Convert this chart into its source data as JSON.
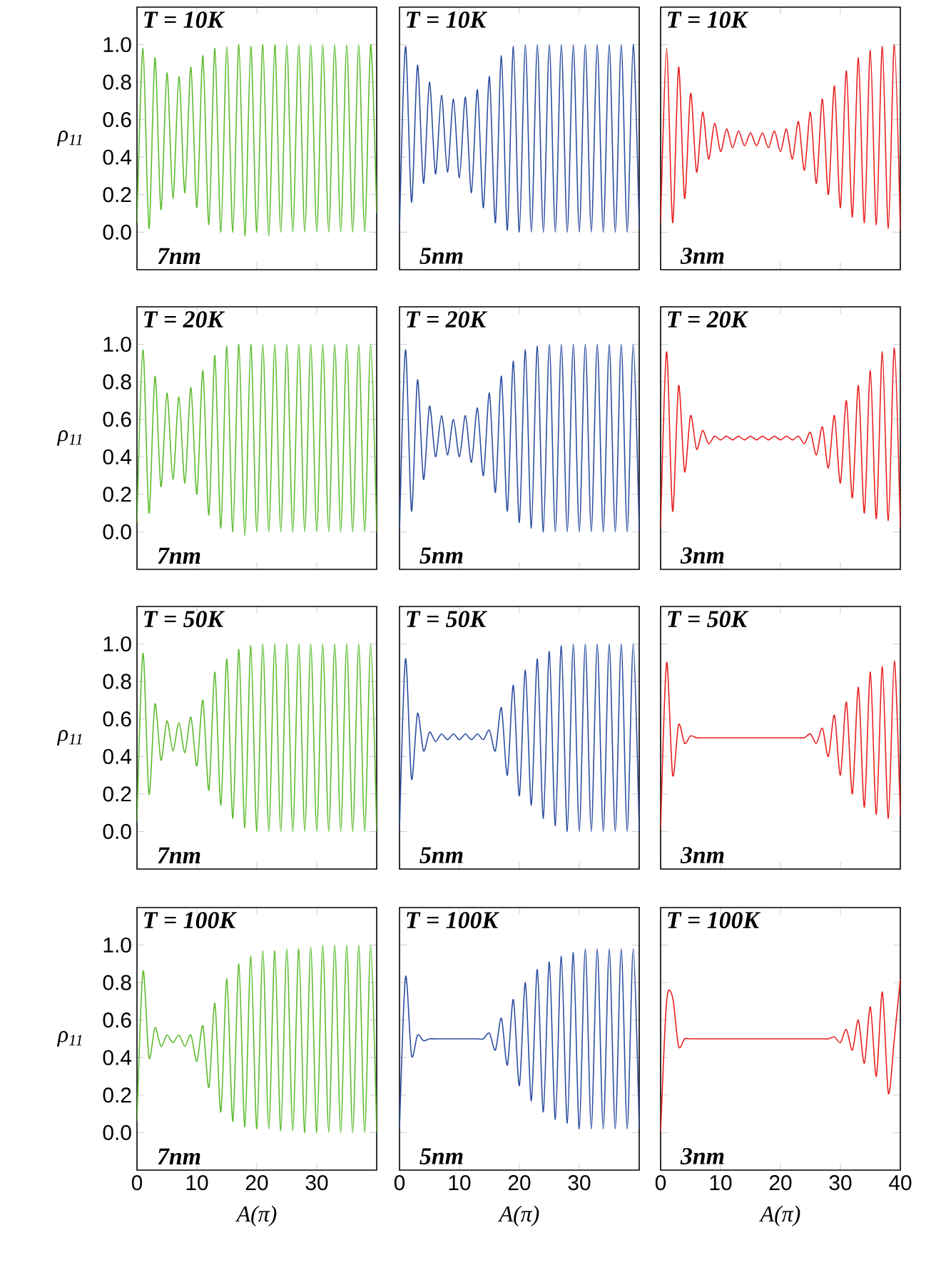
{
  "chart_data": [
    {
      "type": "line",
      "color": "#5dbb2f",
      "xlim": [
        0,
        40
      ],
      "ylim": [
        -0.2,
        1.2
      ],
      "xticks": [
        0,
        10,
        20,
        30
      ],
      "yticks": [
        {
          "value": 0,
          "label": "0.0"
        },
        {
          "value": 0.2,
          "label": "0.2"
        },
        {
          "value": 0.4,
          "label": "0.4"
        },
        {
          "value": 0.6,
          "label": "0.6"
        },
        {
          "value": 0.8,
          "label": "0.8"
        },
        {
          "value": 1.0,
          "label": "1.0"
        }
      ],
      "tick_labels": "y",
      "ylabel": "ρ$_{11}$",
      "annotations": [
        "T = 10K",
        "7nm"
      ],
      "x": [
        0,
        1,
        2,
        3,
        4,
        5,
        6,
        7,
        8,
        9,
        10,
        11,
        12,
        13,
        14,
        15,
        16,
        17,
        18,
        19,
        20,
        21,
        22,
        23,
        24,
        25,
        26,
        27,
        28,
        29,
        30,
        31,
        32,
        33,
        34,
        35,
        36,
        37,
        38,
        39,
        40
      ],
      "values": [
        0.05,
        0.98,
        0.02,
        0.93,
        0.12,
        0.85,
        0.18,
        0.83,
        0.21,
        0.88,
        0.13,
        0.94,
        0.04,
        0.98,
        0.0,
        0.99,
        0.0,
        1.0,
        -0.02,
        0.99,
        0.0,
        1.0,
        -0.02,
        1.0,
        0.0,
        1.0,
        0.0,
        1.0,
        0.0,
        1.0,
        0.0,
        1.0,
        0.0,
        1.0,
        0.0,
        1.0,
        0.0,
        1.0,
        0.0,
        1.0,
        0.1
      ]
    },
    {
      "type": "line",
      "color": "#2c4ea0",
      "xlim": [
        0,
        40
      ],
      "ylim": [
        -0.2,
        1.2
      ],
      "xticks": [
        0,
        10,
        20,
        30
      ],
      "yticks": [
        0,
        0.2,
        0.4,
        0.6,
        0.8,
        1.0
      ],
      "tick_labels": false,
      "annotations": [
        "T = 10K",
        "5nm"
      ],
      "x": [
        0,
        1,
        2,
        3,
        4,
        5,
        6,
        7,
        8,
        9,
        10,
        11,
        12,
        13,
        14,
        15,
        16,
        17,
        18,
        19,
        20,
        21,
        22,
        23,
        24,
        25,
        26,
        27,
        28,
        29,
        30,
        31,
        32,
        33,
        34,
        35,
        36,
        37,
        38,
        39,
        40
      ],
      "values": [
        0.02,
        0.99,
        0.16,
        0.89,
        0.26,
        0.8,
        0.31,
        0.73,
        0.32,
        0.71,
        0.29,
        0.72,
        0.21,
        0.76,
        0.13,
        0.83,
        0.05,
        0.94,
        0.01,
        0.99,
        0.0,
        1.0,
        0.0,
        1.0,
        0.0,
        1.0,
        0.0,
        1.0,
        0.0,
        1.0,
        0.0,
        1.0,
        0.0,
        1.0,
        0.0,
        1.0,
        0.0,
        1.0,
        0.0,
        1.0,
        0.02
      ]
    },
    {
      "type": "line",
      "color": "#e8201f",
      "xlim": [
        0,
        40
      ],
      "ylim": [
        -0.2,
        1.2
      ],
      "xticks": [
        0,
        10,
        20,
        30
      ],
      "yticks": [
        0,
        0.2,
        0.4,
        0.6,
        0.8,
        1.0
      ],
      "tick_labels": false,
      "annotations": [
        "T = 10K",
        "3nm"
      ],
      "x": [
        0,
        1,
        2,
        3,
        4,
        5,
        6,
        7,
        8,
        9,
        10,
        11,
        12,
        13,
        14,
        15,
        16,
        17,
        18,
        19,
        20,
        21,
        22,
        23,
        24,
        25,
        26,
        27,
        28,
        29,
        30,
        31,
        32,
        33,
        34,
        35,
        36,
        37,
        38,
        39,
        40
      ],
      "values": [
        0.05,
        0.98,
        0.05,
        0.88,
        0.18,
        0.74,
        0.32,
        0.64,
        0.39,
        0.58,
        0.43,
        0.55,
        0.45,
        0.54,
        0.46,
        0.53,
        0.46,
        0.53,
        0.45,
        0.54,
        0.43,
        0.55,
        0.39,
        0.59,
        0.33,
        0.64,
        0.26,
        0.71,
        0.2,
        0.78,
        0.13,
        0.86,
        0.08,
        0.93,
        0.05,
        0.97,
        0.04,
        0.99,
        0.02,
        1.0,
        0.01
      ]
    },
    {
      "type": "line",
      "color": "#5dbb2f",
      "xlim": [
        0,
        40
      ],
      "ylim": [
        -0.2,
        1.2
      ],
      "xticks": [
        0,
        10,
        20,
        30
      ],
      "yticks": [
        {
          "value": 0,
          "label": "0.0"
        },
        {
          "value": 0.2,
          "label": "0.2"
        },
        {
          "value": 0.4,
          "label": "0.4"
        },
        {
          "value": 0.6,
          "label": "0.6"
        },
        {
          "value": 0.8,
          "label": "0.8"
        },
        {
          "value": 1.0,
          "label": "1.0"
        }
      ],
      "tick_labels": "y",
      "ylabel": "ρ$_{11}$",
      "annotations": [
        "T = 20K",
        "7nm"
      ],
      "x": [
        0,
        1,
        2,
        3,
        4,
        5,
        6,
        7,
        8,
        9,
        10,
        11,
        12,
        13,
        14,
        15,
        16,
        17,
        18,
        19,
        20,
        21,
        22,
        23,
        24,
        25,
        26,
        27,
        28,
        29,
        30,
        31,
        32,
        33,
        34,
        35,
        36,
        37,
        38,
        39,
        40
      ],
      "values": [
        0.05,
        0.97,
        0.1,
        0.83,
        0.24,
        0.74,
        0.28,
        0.72,
        0.26,
        0.77,
        0.2,
        0.86,
        0.09,
        0.94,
        0.02,
        0.99,
        0.0,
        1.0,
        -0.02,
        1.0,
        0.0,
        1.0,
        0.0,
        1.0,
        0.0,
        1.0,
        0.0,
        1.0,
        0.0,
        1.0,
        0.0,
        1.0,
        0.0,
        1.0,
        0.0,
        1.0,
        0.0,
        1.0,
        0.0,
        1.0,
        0.0
      ]
    },
    {
      "type": "line",
      "color": "#2c4ea0",
      "xlim": [
        0,
        40
      ],
      "ylim": [
        -0.2,
        1.2
      ],
      "xticks": [
        0,
        10,
        20,
        30
      ],
      "yticks": [
        0,
        0.2,
        0.4,
        0.6,
        0.8,
        1.0
      ],
      "tick_labels": false,
      "annotations": [
        "T = 20K",
        "5nm"
      ],
      "x": [
        0,
        1,
        2,
        3,
        4,
        5,
        6,
        7,
        8,
        9,
        10,
        11,
        12,
        13,
        14,
        15,
        16,
        17,
        18,
        19,
        20,
        21,
        22,
        23,
        24,
        25,
        26,
        27,
        28,
        29,
        30,
        31,
        32,
        33,
        34,
        35,
        36,
        37,
        38,
        39,
        40
      ],
      "values": [
        0.0,
        0.97,
        0.11,
        0.81,
        0.28,
        0.67,
        0.4,
        0.62,
        0.41,
        0.6,
        0.4,
        0.62,
        0.37,
        0.66,
        0.3,
        0.74,
        0.21,
        0.83,
        0.11,
        0.91,
        0.05,
        0.97,
        0.02,
        0.99,
        0.0,
        1.0,
        0.0,
        1.0,
        0.0,
        1.0,
        0.0,
        1.0,
        0.0,
        1.0,
        0.0,
        1.0,
        0.0,
        1.0,
        0.0,
        1.0,
        0.0
      ]
    },
    {
      "type": "line",
      "color": "#e8201f",
      "xlim": [
        0,
        40
      ],
      "ylim": [
        -0.2,
        1.2
      ],
      "xticks": [
        0,
        10,
        20,
        30
      ],
      "yticks": [
        0,
        0.2,
        0.4,
        0.6,
        0.8,
        1.0
      ],
      "tick_labels": false,
      "annotations": [
        "T = 20K",
        "3nm"
      ],
      "x": [
        0,
        1,
        2,
        3,
        4,
        5,
        6,
        7,
        8,
        9,
        10,
        11,
        12,
        13,
        14,
        15,
        16,
        17,
        18,
        19,
        20,
        21,
        22,
        23,
        24,
        25,
        26,
        27,
        28,
        29,
        30,
        31,
        32,
        33,
        34,
        35,
        36,
        37,
        38,
        39,
        40
      ],
      "values": [
        0.02,
        0.96,
        0.11,
        0.78,
        0.32,
        0.62,
        0.44,
        0.54,
        0.47,
        0.51,
        0.49,
        0.51,
        0.49,
        0.51,
        0.49,
        0.51,
        0.49,
        0.51,
        0.49,
        0.51,
        0.49,
        0.51,
        0.49,
        0.51,
        0.47,
        0.53,
        0.41,
        0.56,
        0.34,
        0.62,
        0.26,
        0.7,
        0.18,
        0.78,
        0.1,
        0.86,
        0.07,
        0.96,
        0.06,
        0.98,
        0.02
      ]
    },
    {
      "type": "line",
      "color": "#5dbb2f",
      "xlim": [
        0,
        40
      ],
      "ylim": [
        -0.2,
        1.2
      ],
      "xticks": [
        0,
        10,
        20,
        30
      ],
      "yticks": [
        {
          "value": 0,
          "label": "0.0"
        },
        {
          "value": 0.2,
          "label": "0.2"
        },
        {
          "value": 0.4,
          "label": "0.4"
        },
        {
          "value": 0.6,
          "label": "0.6"
        },
        {
          "value": 0.8,
          "label": "0.8"
        },
        {
          "value": 1.0,
          "label": "1.0"
        }
      ],
      "tick_labels": "y",
      "ylabel": "ρ$_{11}$",
      "annotations": [
        "T = 50K",
        "7nm"
      ],
      "x": [
        0,
        1,
        2,
        3,
        4,
        5,
        6,
        7,
        8,
        9,
        10,
        11,
        12,
        13,
        14,
        15,
        16,
        17,
        18,
        19,
        20,
        21,
        22,
        23,
        24,
        25,
        26,
        27,
        28,
        29,
        30,
        31,
        32,
        33,
        34,
        35,
        36,
        37,
        38,
        39,
        40
      ],
      "values": [
        0.05,
        0.95,
        0.2,
        0.68,
        0.38,
        0.59,
        0.43,
        0.58,
        0.42,
        0.61,
        0.35,
        0.7,
        0.22,
        0.85,
        0.14,
        0.92,
        0.07,
        0.97,
        0.02,
        0.99,
        0.0,
        1.0,
        0.0,
        1.0,
        0.0,
        1.0,
        0.0,
        1.0,
        0.0,
        1.0,
        0.0,
        1.0,
        0.0,
        1.0,
        0.0,
        1.0,
        0.0,
        1.0,
        0.0,
        1.0,
        0.0
      ]
    },
    {
      "type": "line",
      "color": "#2c4ea0",
      "xlim": [
        0,
        40
      ],
      "ylim": [
        -0.2,
        1.2
      ],
      "xticks": [
        0,
        10,
        20,
        30
      ],
      "yticks": [
        0,
        0.2,
        0.4,
        0.6,
        0.8,
        1.0
      ],
      "tick_labels": false,
      "annotations": [
        "T = 50K",
        "5nm"
      ],
      "x": [
        0,
        1,
        2,
        3,
        4,
        5,
        6,
        7,
        8,
        9,
        10,
        11,
        12,
        13,
        14,
        15,
        16,
        17,
        18,
        19,
        20,
        21,
        22,
        23,
        24,
        25,
        26,
        27,
        28,
        29,
        30,
        31,
        32,
        33,
        34,
        35,
        36,
        37,
        38,
        39,
        40
      ],
      "values": [
        0.01,
        0.92,
        0.28,
        0.63,
        0.43,
        0.53,
        0.48,
        0.52,
        0.49,
        0.52,
        0.49,
        0.52,
        0.49,
        0.52,
        0.49,
        0.54,
        0.43,
        0.66,
        0.3,
        0.78,
        0.19,
        0.86,
        0.14,
        0.92,
        0.07,
        0.96,
        0.03,
        0.99,
        0.0,
        1.0,
        0.0,
        1.0,
        0.0,
        1.0,
        0.0,
        1.0,
        0.0,
        1.0,
        0.0,
        1.0,
        0.0
      ]
    },
    {
      "type": "line",
      "color": "#e8201f",
      "xlim": [
        0,
        40
      ],
      "ylim": [
        -0.2,
        1.2
      ],
      "xticks": [
        0,
        10,
        20,
        30
      ],
      "yticks": [
        0,
        0.2,
        0.4,
        0.6,
        0.8,
        1.0
      ],
      "tick_labels": false,
      "annotations": [
        "T = 50K",
        "3nm"
      ],
      "x": [
        0,
        1,
        2,
        3,
        4,
        5,
        6,
        7,
        8,
        9,
        10,
        11,
        12,
        13,
        14,
        15,
        16,
        17,
        18,
        19,
        20,
        21,
        22,
        23,
        24,
        25,
        26,
        27,
        28,
        29,
        30,
        31,
        32,
        33,
        34,
        35,
        36,
        37,
        38,
        39,
        40
      ],
      "values": [
        0.01,
        0.9,
        0.3,
        0.57,
        0.47,
        0.51,
        0.5,
        0.5,
        0.5,
        0.5,
        0.5,
        0.5,
        0.5,
        0.5,
        0.5,
        0.5,
        0.5,
        0.5,
        0.5,
        0.5,
        0.5,
        0.5,
        0.5,
        0.5,
        0.5,
        0.52,
        0.47,
        0.55,
        0.4,
        0.62,
        0.3,
        0.69,
        0.2,
        0.77,
        0.13,
        0.85,
        0.09,
        0.88,
        0.07,
        0.91,
        0.08
      ]
    },
    {
      "type": "line",
      "color": "#5dbb2f",
      "xlim": [
        0,
        40
      ],
      "ylim": [
        -0.2,
        1.2
      ],
      "xticks": [
        0,
        10,
        20,
        30
      ],
      "yticks": [
        {
          "value": 0,
          "label": "0.0"
        },
        {
          "value": 0.2,
          "label": "0.2"
        },
        {
          "value": 0.4,
          "label": "0.4"
        },
        {
          "value": 0.6,
          "label": "0.6"
        },
        {
          "value": 0.8,
          "label": "0.8"
        },
        {
          "value": 1.0,
          "label": "1.0"
        }
      ],
      "xlabel": "A(π)",
      "ylabel": "ρ$_{11}$",
      "annotations": [
        "T = 100K",
        "7nm"
      ],
      "x": [
        0,
        1,
        2,
        3,
        4,
        5,
        6,
        7,
        8,
        9,
        10,
        11,
        12,
        13,
        14,
        15,
        16,
        17,
        18,
        19,
        20,
        21,
        22,
        23,
        24,
        25,
        26,
        27,
        28,
        29,
        30,
        31,
        32,
        33,
        34,
        35,
        36,
        37,
        38,
        39,
        40
      ],
      "values": [
        0.06,
        0.86,
        0.4,
        0.56,
        0.46,
        0.52,
        0.48,
        0.52,
        0.46,
        0.52,
        0.38,
        0.57,
        0.24,
        0.69,
        0.11,
        0.82,
        0.06,
        0.9,
        0.03,
        0.94,
        0.02,
        0.97,
        0.02,
        0.97,
        0.01,
        0.98,
        0.01,
        0.98,
        0.0,
        0.99,
        0.0,
        1.0,
        0.0,
        1.0,
        0.0,
        1.0,
        0.0,
        1.0,
        0.0,
        1.0,
        0.0
      ]
    },
    {
      "type": "line",
      "color": "#2c4ea0",
      "xlim": [
        0,
        40
      ],
      "ylim": [
        -0.2,
        1.2
      ],
      "xticks": [
        0,
        10,
        20,
        30
      ],
      "yticks": [
        0,
        0.2,
        0.4,
        0.6,
        0.8,
        1.0
      ],
      "tick_labels": "x",
      "xlabel": "A(π)",
      "annotations": [
        "T = 100K",
        "5nm"
      ],
      "x": [
        0,
        1,
        2,
        3,
        4,
        5,
        6,
        7,
        8,
        9,
        10,
        11,
        12,
        13,
        14,
        15,
        16,
        17,
        18,
        19,
        20,
        21,
        22,
        23,
        24,
        25,
        26,
        27,
        28,
        29,
        30,
        31,
        32,
        33,
        34,
        35,
        36,
        37,
        38,
        39,
        40
      ],
      "values": [
        0.02,
        0.83,
        0.41,
        0.52,
        0.49,
        0.5,
        0.5,
        0.5,
        0.5,
        0.5,
        0.5,
        0.5,
        0.5,
        0.5,
        0.5,
        0.53,
        0.44,
        0.61,
        0.36,
        0.71,
        0.25,
        0.8,
        0.17,
        0.87,
        0.11,
        0.91,
        0.07,
        0.94,
        0.05,
        0.96,
        0.02,
        0.98,
        0.02,
        0.98,
        0.02,
        0.98,
        0.02,
        0.98,
        0.02,
        0.98,
        0.02
      ]
    },
    {
      "type": "line",
      "color": "#e8201f",
      "xlim": [
        0,
        40
      ],
      "ylim": [
        -0.2,
        1.2
      ],
      "xticks": [
        0,
        10,
        20,
        30,
        40
      ],
      "yticks": [
        0,
        0.2,
        0.4,
        0.6,
        0.8,
        1.0
      ],
      "tick_labels": "x",
      "xlabel": "A(π)",
      "annotations": [
        "T = 100K",
        "3nm"
      ],
      "x": [
        0,
        1,
        2,
        3,
        4,
        5,
        6,
        7,
        8,
        9,
        10,
        11,
        12,
        13,
        14,
        15,
        16,
        17,
        18,
        19,
        20,
        21,
        22,
        23,
        24,
        25,
        26,
        27,
        28,
        29,
        30,
        31,
        32,
        33,
        34,
        35,
        36,
        37,
        38,
        39,
        40
      ],
      "values": [
        0.0,
        0.7,
        0.72,
        0.46,
        0.5,
        0.5,
        0.5,
        0.5,
        0.5,
        0.5,
        0.5,
        0.5,
        0.5,
        0.5,
        0.5,
        0.5,
        0.5,
        0.5,
        0.5,
        0.5,
        0.5,
        0.5,
        0.5,
        0.5,
        0.5,
        0.5,
        0.5,
        0.5,
        0.5,
        0.51,
        0.48,
        0.55,
        0.44,
        0.6,
        0.37,
        0.67,
        0.3,
        0.75,
        0.21,
        0.5,
        0.82
      ]
    }
  ]
}
